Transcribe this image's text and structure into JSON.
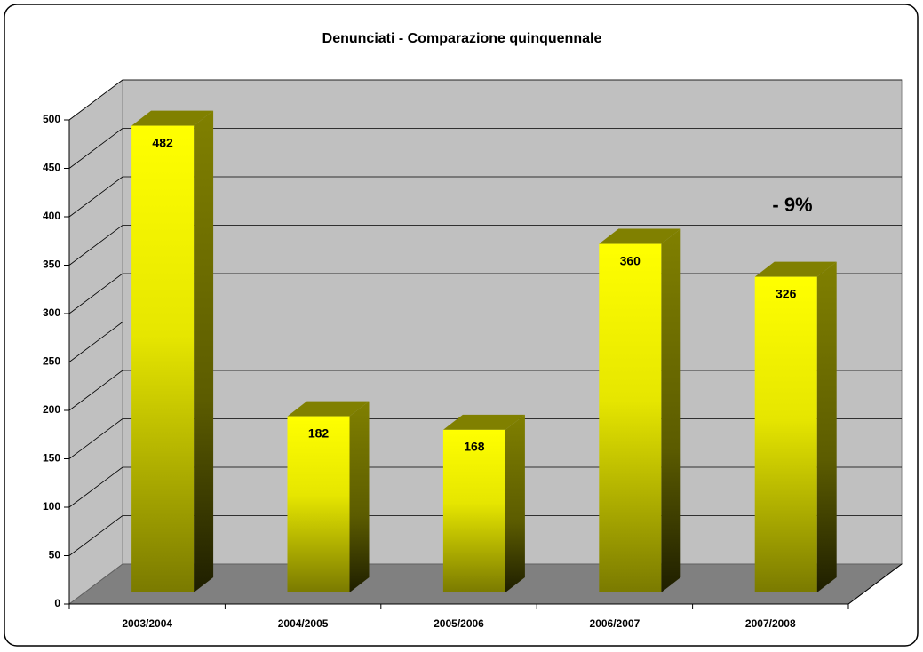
{
  "chart_data": {
    "type": "bar",
    "title": "Denunciati - Comparazione quinquennale",
    "categories": [
      "2003/2004",
      "2004/2005",
      "2005/2006",
      "2006/2007",
      "2007/2008"
    ],
    "values": [
      482,
      182,
      168,
      360,
      326
    ],
    "color": "#ffff00",
    "annotation": "- 9%",
    "ylim": [
      0,
      500
    ],
    "yticks": [
      0,
      50,
      100,
      150,
      200,
      250,
      300,
      350,
      400,
      450,
      500
    ],
    "grid": true
  }
}
